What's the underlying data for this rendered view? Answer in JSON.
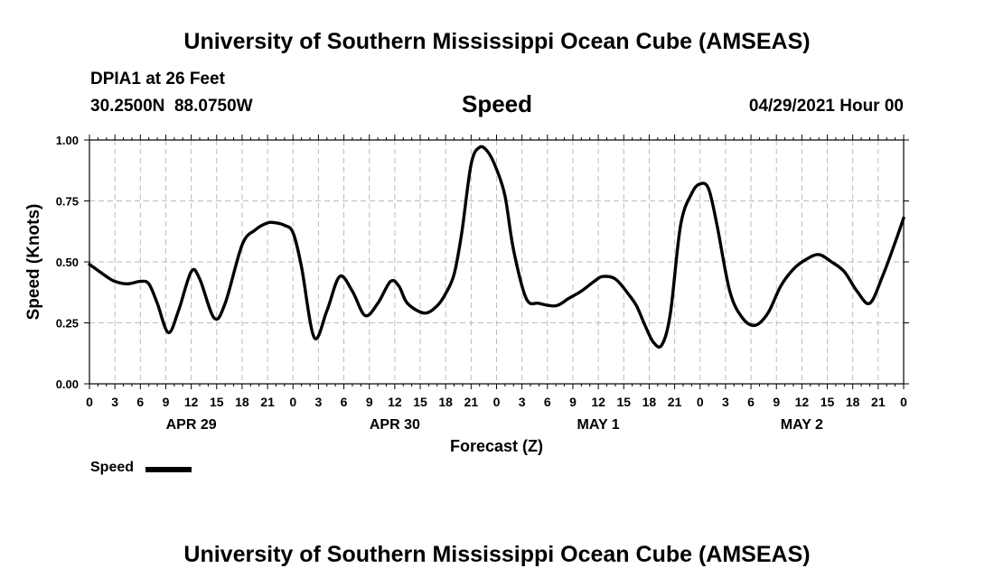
{
  "header": {
    "title": "University of Southern Mississippi Ocean Cube (AMSEAS)",
    "station": "DPIA1 at 26 Feet",
    "coords": "30.2500N  88.0750W",
    "datetime": "04/29/2021 Hour 00"
  },
  "footer": {
    "title": "University of Southern Mississippi Ocean Cube (AMSEAS)"
  },
  "colors": {
    "line": "#000000",
    "grid": "#bbbbbb",
    "axis": "#000000"
  },
  "chart_data": {
    "type": "line",
    "title": "Speed",
    "xlabel": "Forecast (Z)",
    "ylabel": "Speed (Knots)",
    "xlim": [
      0,
      96
    ],
    "ylim": [
      0,
      1
    ],
    "grid": true,
    "legend_placement": "bottom-left",
    "y_ticks": [
      "0.00",
      "0.25",
      "0.50",
      "0.75",
      "1.00"
    ],
    "x_tick_labels": [
      "0",
      "3",
      "6",
      "9",
      "12",
      "15",
      "18",
      "21",
      "0",
      "3",
      "6",
      "9",
      "12",
      "15",
      "18",
      "21",
      "0",
      "3",
      "6",
      "9",
      "12",
      "15",
      "18",
      "21",
      "0",
      "3",
      "6",
      "9",
      "12",
      "15",
      "18",
      "21",
      "0"
    ],
    "day_labels": [
      {
        "label": "APR 29",
        "hour": 12
      },
      {
        "label": "APR 30",
        "hour": 36
      },
      {
        "label": "MAY 1",
        "hour": 60
      },
      {
        "label": "MAY 2",
        "hour": 84
      }
    ],
    "series": [
      {
        "name": "Speed",
        "x": [
          0,
          2,
          3,
          4.5,
          6,
          7,
          8,
          9.3,
          10.5,
          12,
          13,
          14.7,
          16,
          18,
          19.5,
          21,
          22,
          23,
          24,
          25,
          26.5,
          28,
          29.5,
          31,
          32.5,
          34,
          35.5,
          36.5,
          37.5,
          39.5,
          41,
          42,
          43,
          43.9,
          45,
          46,
          47,
          48,
          49,
          50,
          51.5,
          53,
          55,
          56.5,
          58,
          59.5,
          60.5,
          62,
          63.5,
          64.5,
          65.5,
          66.5,
          67.5,
          68.5,
          69.7,
          71,
          72,
          73,
          74,
          75.5,
          77,
          78.5,
          80,
          81.5,
          83,
          84.5,
          86,
          87.5,
          89,
          90.5,
          92,
          93.5,
          95,
          96
        ],
        "values": [
          0.49,
          0.44,
          0.42,
          0.41,
          0.42,
          0.41,
          0.33,
          0.21,
          0.3,
          0.46,
          0.43,
          0.27,
          0.33,
          0.57,
          0.63,
          0.66,
          0.66,
          0.65,
          0.62,
          0.48,
          0.19,
          0.3,
          0.44,
          0.38,
          0.28,
          0.33,
          0.42,
          0.4,
          0.33,
          0.29,
          0.32,
          0.37,
          0.45,
          0.62,
          0.9,
          0.97,
          0.95,
          0.88,
          0.77,
          0.55,
          0.35,
          0.33,
          0.32,
          0.35,
          0.38,
          0.42,
          0.44,
          0.43,
          0.37,
          0.32,
          0.24,
          0.17,
          0.16,
          0.29,
          0.65,
          0.78,
          0.82,
          0.8,
          0.65,
          0.38,
          0.27,
          0.24,
          0.29,
          0.4,
          0.47,
          0.51,
          0.53,
          0.5,
          0.46,
          0.38,
          0.33,
          0.44,
          0.58,
          0.68
        ]
      }
    ]
  }
}
